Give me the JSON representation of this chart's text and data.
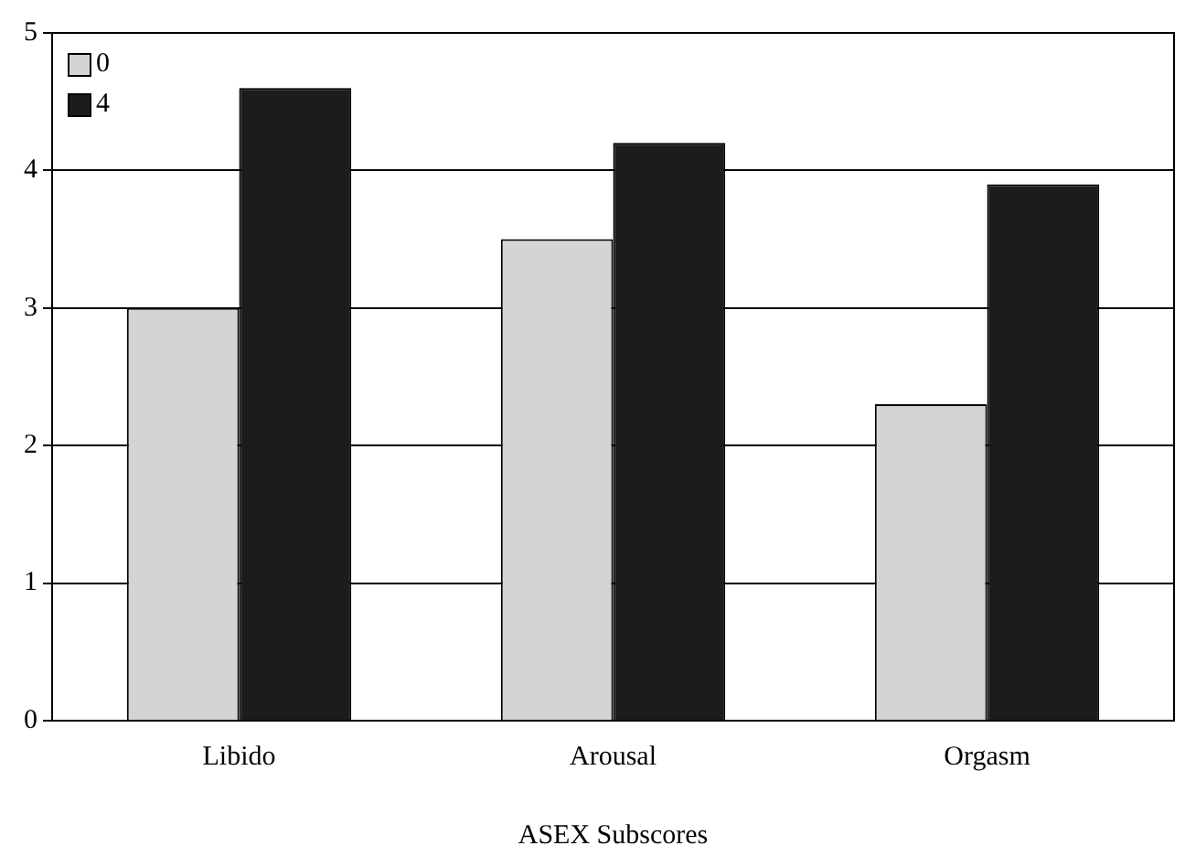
{
  "chart_data": {
    "type": "bar",
    "xlabel": "ASEX Subscores",
    "categories": [
      "Libido",
      "Arousal",
      "Orgasm"
    ],
    "series": [
      {
        "name": "0",
        "color": "#d4d4d4",
        "values": [
          3.0,
          3.5,
          2.3
        ]
      },
      {
        "name": "4",
        "color": "#1c1c1c",
        "values": [
          4.6,
          4.2,
          3.9
        ]
      }
    ],
    "ylim": [
      0,
      5
    ],
    "yticks": [
      0,
      1,
      2,
      3,
      4,
      5
    ],
    "grid": "y",
    "legend": "top left"
  }
}
